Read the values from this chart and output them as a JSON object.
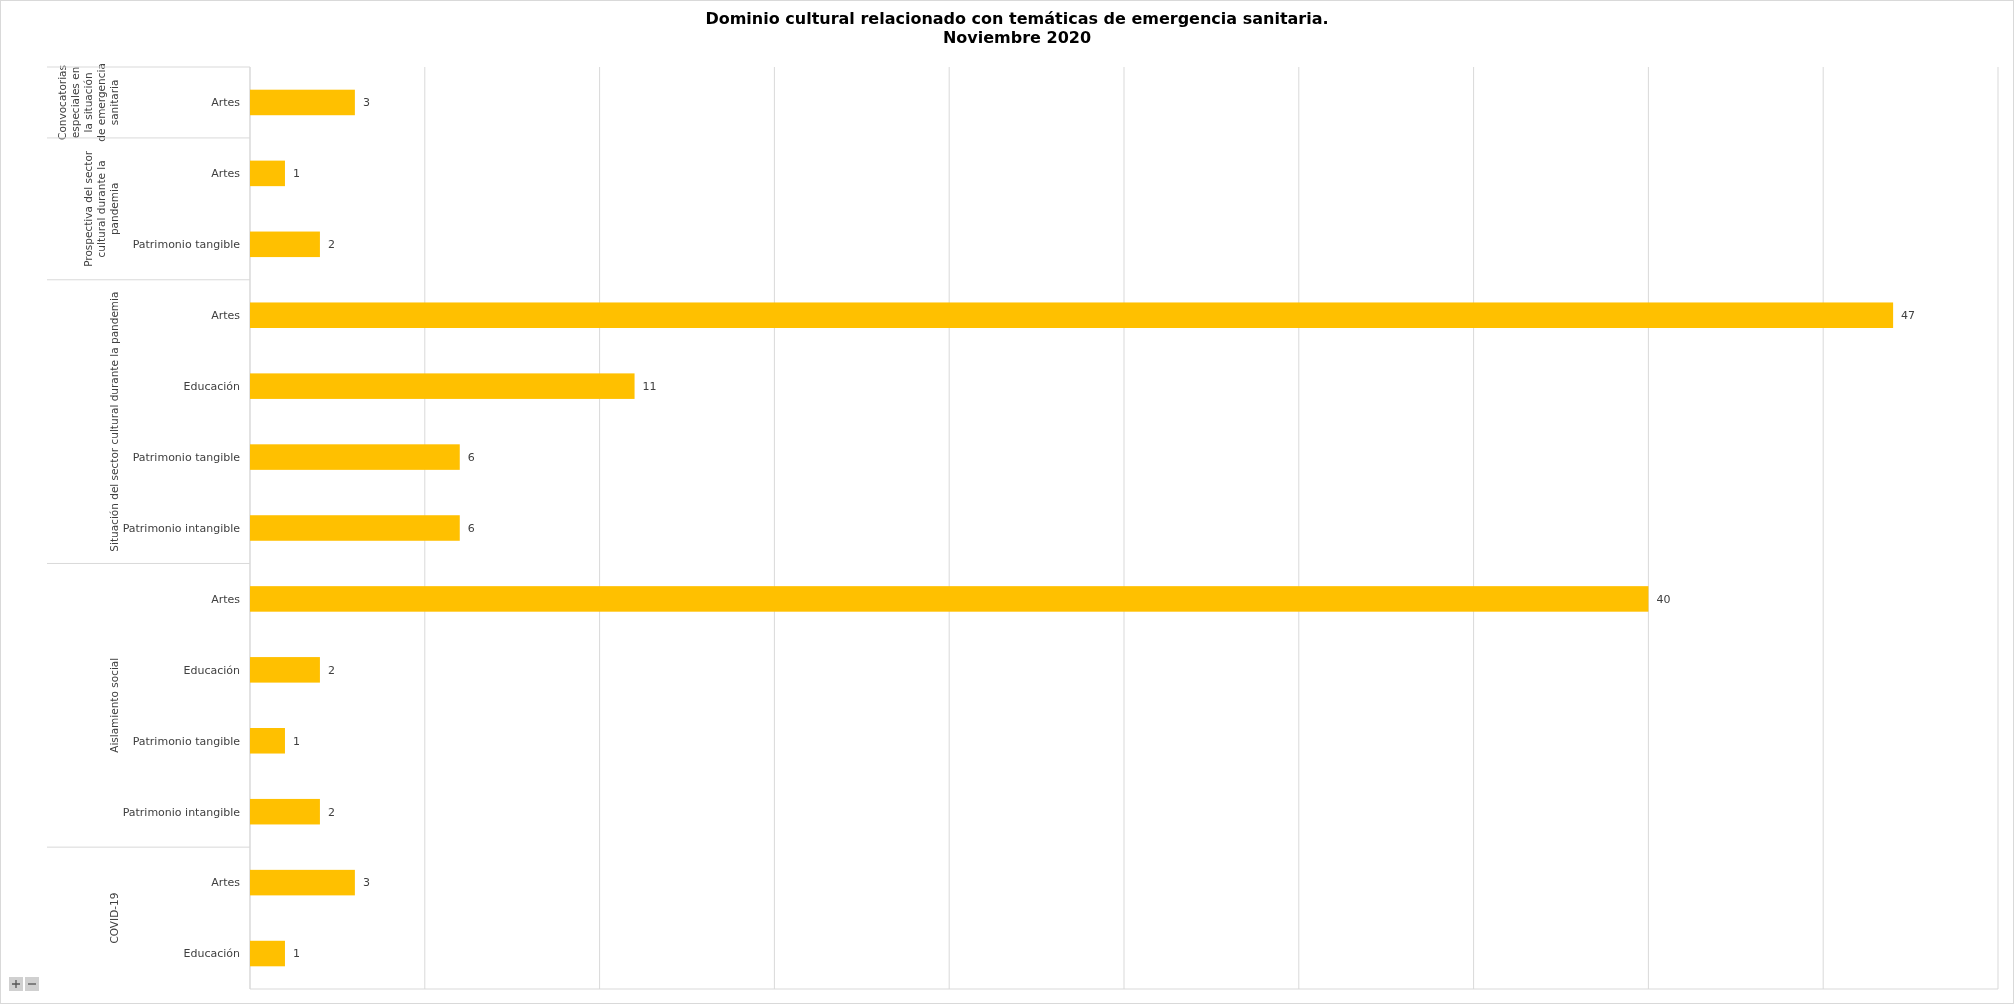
{
  "chart_data": {
    "type": "bar",
    "orientation": "horizontal",
    "title": "Dominio cultural relacionado con temáticas de emergencia sanitaria.\nNoviembre 2020",
    "categories": [
      "Artes",
      "Artes",
      "Patrimonio tangible",
      "Artes",
      "Educación",
      "Patrimonio tangible",
      "Patrimonio intangible",
      "Artes",
      "Educación",
      "Patrimonio tangible",
      "Patrimonio intangible",
      "Artes",
      "Educación"
    ],
    "values": [
      3,
      1,
      2,
      47,
      11,
      6,
      6,
      40,
      2,
      1,
      2,
      3,
      1
    ],
    "color": "#ffc000",
    "xlim": [
      0,
      50
    ],
    "xticks": [
      {
        "value": 0,
        "label": null
      },
      {
        "value": 5,
        "label": null
      },
      {
        "value": 10,
        "label": null
      },
      {
        "value": 15,
        "label": null
      },
      {
        "value": 20,
        "label": null
      },
      {
        "value": 25,
        "label": null
      },
      {
        "value": 30,
        "label": null
      },
      {
        "value": 35,
        "label": null
      },
      {
        "value": 40,
        "label": null
      },
      {
        "value": 45,
        "label": null
      },
      {
        "value": 50,
        "label": null
      }
    ],
    "annotations": [
      "Convocatorias especiales en la situación de emergencia sanitaria",
      "Prospectiva del sector cultural durante la pandemia",
      "Situación del sector cultural durante la pandemia",
      "Aislamiento social",
      "COVID-19"
    ],
    "grid": "x",
    "tick_labels": "y",
    "data_labels": true
  }
}
